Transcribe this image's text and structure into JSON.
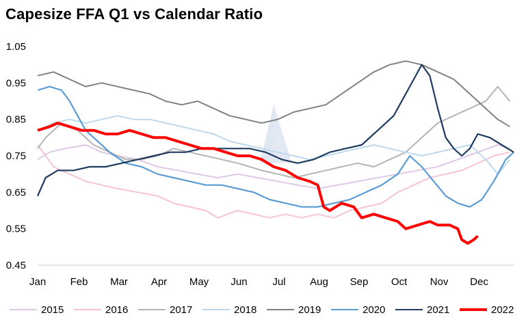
{
  "title": "Capesize FFA  Q1 vs Calendar Ratio",
  "chart_data": {
    "type": "line",
    "title": "Capesize FFA  Q1 vs Calendar Ratio",
    "x_tick_labels": [
      "Jan",
      "Feb",
      "Mar",
      "Apr",
      "May",
      "Jun",
      "Jul",
      "Aug",
      "Sep",
      "Oct",
      "Nov",
      "Dec"
    ],
    "y_tick_labels": [
      "1.05",
      "0.95",
      "0.85",
      "0.75",
      "0.65",
      "0.55",
      "0.45"
    ],
    "ylim": [
      0.45,
      1.05
    ],
    "grid": false,
    "legend_position": "bottom",
    "x_unit": "month index (0 = Jan 1)",
    "series": [
      {
        "name": "2015",
        "color": "#ddc8e6",
        "width": 2,
        "points": [
          [
            0,
            0.74
          ],
          [
            0.3,
            0.76
          ],
          [
            0.7,
            0.77
          ],
          [
            1.2,
            0.78
          ],
          [
            1.6,
            0.76
          ],
          [
            2,
            0.75
          ],
          [
            2.5,
            0.74
          ],
          [
            3,
            0.72
          ],
          [
            3.5,
            0.71
          ],
          [
            4,
            0.7
          ],
          [
            4.5,
            0.69
          ],
          [
            5,
            0.7
          ],
          [
            5.5,
            0.69
          ],
          [
            6,
            0.68
          ],
          [
            6.5,
            0.67
          ],
          [
            7,
            0.66
          ],
          [
            7.5,
            0.67
          ],
          [
            8,
            0.68
          ],
          [
            8.5,
            0.69
          ],
          [
            9,
            0.7
          ],
          [
            9.5,
            0.71
          ],
          [
            10,
            0.72
          ],
          [
            10.5,
            0.74
          ],
          [
            11,
            0.76
          ],
          [
            11.5,
            0.78
          ],
          [
            11.8,
            0.77
          ]
        ]
      },
      {
        "name": "2016",
        "color": "#f6c2d6",
        "width": 2,
        "points": [
          [
            0,
            0.78
          ],
          [
            0.4,
            0.72
          ],
          [
            0.8,
            0.7
          ],
          [
            1.2,
            0.68
          ],
          [
            1.6,
            0.67
          ],
          [
            2,
            0.66
          ],
          [
            2.5,
            0.65
          ],
          [
            3,
            0.64
          ],
          [
            3.4,
            0.62
          ],
          [
            3.8,
            0.61
          ],
          [
            4.2,
            0.6
          ],
          [
            4.5,
            0.58
          ],
          [
            5,
            0.6
          ],
          [
            5.4,
            0.59
          ],
          [
            5.8,
            0.58
          ],
          [
            6.2,
            0.59
          ],
          [
            6.6,
            0.58
          ],
          [
            7,
            0.59
          ],
          [
            7.4,
            0.58
          ],
          [
            7.8,
            0.6
          ],
          [
            8.2,
            0.61
          ],
          [
            8.6,
            0.62
          ],
          [
            9,
            0.65
          ],
          [
            9.4,
            0.67
          ],
          [
            9.8,
            0.69
          ],
          [
            10.2,
            0.7
          ],
          [
            10.6,
            0.71
          ],
          [
            11,
            0.73
          ],
          [
            11.4,
            0.75
          ],
          [
            11.8,
            0.76
          ]
        ]
      },
      {
        "name": "2017",
        "color": "#b4b4b4",
        "width": 2,
        "points": [
          [
            0,
            0.77
          ],
          [
            0.2,
            0.8
          ],
          [
            0.6,
            0.84
          ],
          [
            1,
            0.82
          ],
          [
            1.4,
            0.78
          ],
          [
            1.8,
            0.76
          ],
          [
            2.2,
            0.74
          ],
          [
            2.6,
            0.74
          ],
          [
            3,
            0.75
          ],
          [
            3.4,
            0.77
          ],
          [
            3.8,
            0.76
          ],
          [
            4.2,
            0.75
          ],
          [
            4.6,
            0.74
          ],
          [
            5,
            0.73
          ],
          [
            5.3,
            0.72
          ],
          [
            5.6,
            0.71
          ],
          [
            6,
            0.7
          ],
          [
            6.4,
            0.69
          ],
          [
            6.8,
            0.7
          ],
          [
            7.2,
            0.71
          ],
          [
            7.6,
            0.72
          ],
          [
            8,
            0.73
          ],
          [
            8.4,
            0.72
          ],
          [
            8.8,
            0.74
          ],
          [
            9.2,
            0.76
          ],
          [
            9.6,
            0.8
          ],
          [
            10,
            0.84
          ],
          [
            10.4,
            0.86
          ],
          [
            10.8,
            0.88
          ],
          [
            11.2,
            0.9
          ],
          [
            11.5,
            0.94
          ],
          [
            11.8,
            0.9
          ]
        ]
      },
      {
        "name": "2018",
        "color": "#bcd8ee",
        "width": 2,
        "points": [
          [
            0,
            0.82
          ],
          [
            0.4,
            0.84
          ],
          [
            0.8,
            0.85
          ],
          [
            1.2,
            0.84
          ],
          [
            1.6,
            0.85
          ],
          [
            2,
            0.86
          ],
          [
            2.4,
            0.85
          ],
          [
            2.8,
            0.85
          ],
          [
            3.2,
            0.84
          ],
          [
            3.6,
            0.83
          ],
          [
            4,
            0.82
          ],
          [
            4.4,
            0.81
          ],
          [
            4.8,
            0.79
          ],
          [
            5.2,
            0.78
          ],
          [
            5.6,
            0.77
          ],
          [
            6,
            0.76
          ],
          [
            6.4,
            0.75
          ],
          [
            6.8,
            0.74
          ],
          [
            7.2,
            0.75
          ],
          [
            7.6,
            0.76
          ],
          [
            8,
            0.77
          ],
          [
            8.4,
            0.78
          ],
          [
            8.8,
            0.77
          ],
          [
            9.2,
            0.76
          ],
          [
            9.6,
            0.75
          ],
          [
            10,
            0.76
          ],
          [
            10.4,
            0.77
          ],
          [
            10.8,
            0.78
          ],
          [
            11.2,
            0.74
          ],
          [
            11.5,
            0.7
          ],
          [
            11.8,
            0.74
          ]
        ]
      },
      {
        "name": "2019",
        "color": "#808080",
        "width": 2,
        "points": [
          [
            0,
            0.97
          ],
          [
            0.4,
            0.98
          ],
          [
            0.8,
            0.96
          ],
          [
            1.2,
            0.94
          ],
          [
            1.6,
            0.95
          ],
          [
            2,
            0.94
          ],
          [
            2.4,
            0.93
          ],
          [
            2.8,
            0.92
          ],
          [
            3.2,
            0.9
          ],
          [
            3.6,
            0.89
          ],
          [
            4,
            0.9
          ],
          [
            4.4,
            0.88
          ],
          [
            4.8,
            0.86
          ],
          [
            5.2,
            0.85
          ],
          [
            5.6,
            0.84
          ],
          [
            6,
            0.85
          ],
          [
            6.4,
            0.87
          ],
          [
            6.8,
            0.88
          ],
          [
            7.2,
            0.89
          ],
          [
            7.6,
            0.92
          ],
          [
            8,
            0.95
          ],
          [
            8.4,
            0.98
          ],
          [
            8.8,
            1.0
          ],
          [
            9.2,
            1.01
          ],
          [
            9.6,
            1.0
          ],
          [
            10,
            0.98
          ],
          [
            10.4,
            0.96
          ],
          [
            10.8,
            0.92
          ],
          [
            11.2,
            0.88
          ],
          [
            11.5,
            0.85
          ],
          [
            11.8,
            0.83
          ]
        ]
      },
      {
        "name": "2020",
        "color": "#5b9bd5",
        "width": 2.2,
        "points": [
          [
            0,
            0.93
          ],
          [
            0.3,
            0.94
          ],
          [
            0.6,
            0.93
          ],
          [
            0.8,
            0.9
          ],
          [
            1,
            0.86
          ],
          [
            1.2,
            0.82
          ],
          [
            1.5,
            0.79
          ],
          [
            1.8,
            0.76
          ],
          [
            2.2,
            0.73
          ],
          [
            2.6,
            0.72
          ],
          [
            3,
            0.7
          ],
          [
            3.4,
            0.69
          ],
          [
            3.8,
            0.68
          ],
          [
            4.2,
            0.67
          ],
          [
            4.6,
            0.67
          ],
          [
            5,
            0.66
          ],
          [
            5.4,
            0.65
          ],
          [
            5.8,
            0.63
          ],
          [
            6.2,
            0.62
          ],
          [
            6.6,
            0.61
          ],
          [
            7,
            0.61
          ],
          [
            7.4,
            0.62
          ],
          [
            7.8,
            0.63
          ],
          [
            8.2,
            0.65
          ],
          [
            8.6,
            0.67
          ],
          [
            9,
            0.7
          ],
          [
            9.3,
            0.75
          ],
          [
            9.6,
            0.72
          ],
          [
            9.9,
            0.68
          ],
          [
            10.2,
            0.64
          ],
          [
            10.5,
            0.62
          ],
          [
            10.8,
            0.61
          ],
          [
            11.1,
            0.63
          ],
          [
            11.4,
            0.68
          ],
          [
            11.7,
            0.74
          ],
          [
            11.9,
            0.76
          ]
        ]
      },
      {
        "name": "2021",
        "color": "#1f3a5f",
        "width": 2.2,
        "points": [
          [
            0,
            0.64
          ],
          [
            0.2,
            0.69
          ],
          [
            0.5,
            0.71
          ],
          [
            0.9,
            0.71
          ],
          [
            1.3,
            0.72
          ],
          [
            1.7,
            0.72
          ],
          [
            2.1,
            0.73
          ],
          [
            2.5,
            0.74
          ],
          [
            2.9,
            0.75
          ],
          [
            3.3,
            0.76
          ],
          [
            3.7,
            0.76
          ],
          [
            4.1,
            0.77
          ],
          [
            4.5,
            0.77
          ],
          [
            4.9,
            0.77
          ],
          [
            5.3,
            0.77
          ],
          [
            5.7,
            0.76
          ],
          [
            6.1,
            0.74
          ],
          [
            6.5,
            0.73
          ],
          [
            6.9,
            0.74
          ],
          [
            7.3,
            0.76
          ],
          [
            7.7,
            0.77
          ],
          [
            8.1,
            0.78
          ],
          [
            8.5,
            0.82
          ],
          [
            8.9,
            0.86
          ],
          [
            9.2,
            0.92
          ],
          [
            9.4,
            0.96
          ],
          [
            9.6,
            1.0
          ],
          [
            9.8,
            0.97
          ],
          [
            10,
            0.88
          ],
          [
            10.2,
            0.8
          ],
          [
            10.4,
            0.77
          ],
          [
            10.6,
            0.75
          ],
          [
            10.8,
            0.77
          ],
          [
            11,
            0.81
          ],
          [
            11.3,
            0.8
          ],
          [
            11.6,
            0.78
          ],
          [
            11.9,
            0.76
          ]
        ]
      },
      {
        "name": "2022",
        "color": "#ff0000",
        "width": 4,
        "points": [
          [
            0,
            0.82
          ],
          [
            0.3,
            0.83
          ],
          [
            0.5,
            0.84
          ],
          [
            0.8,
            0.83
          ],
          [
            1.1,
            0.82
          ],
          [
            1.4,
            0.82
          ],
          [
            1.7,
            0.81
          ],
          [
            2,
            0.81
          ],
          [
            2.3,
            0.82
          ],
          [
            2.6,
            0.81
          ],
          [
            2.9,
            0.8
          ],
          [
            3.2,
            0.8
          ],
          [
            3.5,
            0.79
          ],
          [
            3.8,
            0.78
          ],
          [
            4.1,
            0.77
          ],
          [
            4.4,
            0.77
          ],
          [
            4.7,
            0.76
          ],
          [
            5,
            0.75
          ],
          [
            5.3,
            0.75
          ],
          [
            5.6,
            0.74
          ],
          [
            5.9,
            0.72
          ],
          [
            6.2,
            0.71
          ],
          [
            6.5,
            0.69
          ],
          [
            6.8,
            0.68
          ],
          [
            7,
            0.67
          ],
          [
            7.15,
            0.61
          ],
          [
            7.3,
            0.6
          ],
          [
            7.6,
            0.62
          ],
          [
            7.9,
            0.61
          ],
          [
            8.1,
            0.58
          ],
          [
            8.4,
            0.59
          ],
          [
            8.7,
            0.58
          ],
          [
            9,
            0.57
          ],
          [
            9.2,
            0.55
          ],
          [
            9.5,
            0.56
          ],
          [
            9.8,
            0.57
          ],
          [
            10,
            0.56
          ],
          [
            10.3,
            0.56
          ],
          [
            10.5,
            0.55
          ],
          [
            10.6,
            0.52
          ],
          [
            10.75,
            0.51
          ],
          [
            10.9,
            0.52
          ],
          [
            11.0,
            0.53
          ]
        ]
      }
    ]
  }
}
